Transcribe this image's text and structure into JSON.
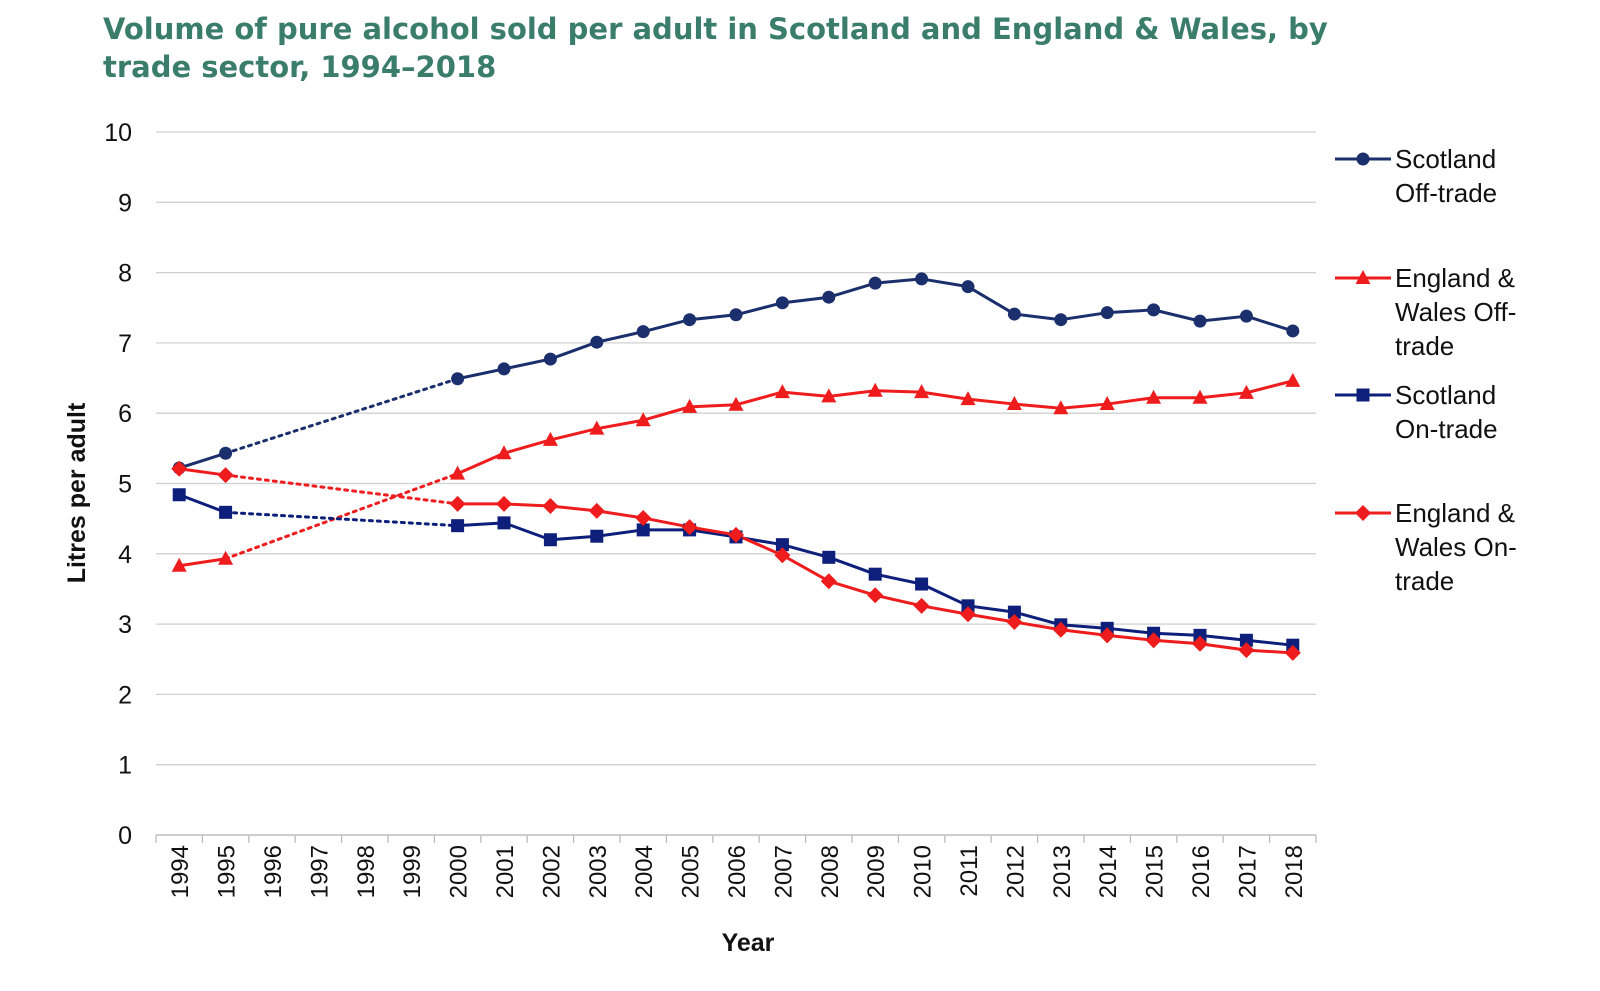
{
  "chart_data": {
    "type": "line",
    "title": "Volume of pure alcohol sold per adult in Scotland and England & Wales, by trade sector, 1994–2018",
    "xlabel": "Year",
    "ylabel": "Litres per adult",
    "ylim": [
      0,
      10
    ],
    "yticks": [
      "0",
      "1",
      "2",
      "3",
      "4",
      "5",
      "6",
      "7",
      "8",
      "9",
      "10"
    ],
    "grid": true,
    "legend_position": "right",
    "categories": [
      "1994",
      "1995",
      "1996",
      "1997",
      "1998",
      "1999",
      "2000",
      "2001",
      "2002",
      "2003",
      "2004",
      "2005",
      "2006",
      "2007",
      "2008",
      "2009",
      "2010",
      "2011",
      "2012",
      "2013",
      "2014",
      "2015",
      "2016",
      "2017",
      "2018"
    ],
    "gap_note_style": "dotted line joins 1995 to 2000 (no data 1996–1999)",
    "series": [
      {
        "name": "Scotland Off-trade",
        "color": "#1a2f6b",
        "marker": "circle",
        "values": [
          5.22,
          5.43,
          null,
          null,
          null,
          null,
          6.49,
          6.63,
          6.77,
          7.01,
          7.16,
          7.33,
          7.4,
          7.57,
          7.65,
          7.85,
          7.91,
          7.8,
          7.41,
          7.33,
          7.43,
          7.47,
          7.31,
          7.38,
          7.17
        ]
      },
      {
        "name": "England & Wales Off-trade",
        "color": "#ee1c1c",
        "marker": "triangle",
        "values": [
          3.83,
          3.93,
          null,
          null,
          null,
          null,
          5.14,
          5.43,
          5.62,
          5.78,
          5.9,
          6.09,
          6.12,
          6.3,
          6.24,
          6.32,
          6.3,
          6.2,
          6.13,
          6.07,
          6.13,
          6.22,
          6.22,
          6.29,
          6.46
        ]
      },
      {
        "name": "Scotland On-trade",
        "color": "#0d1f7a",
        "marker": "square",
        "values": [
          4.84,
          4.59,
          null,
          null,
          null,
          null,
          4.4,
          4.44,
          4.2,
          4.25,
          4.34,
          4.34,
          4.24,
          4.13,
          3.95,
          3.71,
          3.57,
          3.26,
          3.17,
          2.99,
          2.94,
          2.87,
          2.84,
          2.77,
          2.7
        ]
      },
      {
        "name": "England & Wales On-trade",
        "color": "#ee1c1c",
        "marker": "diamond",
        "values": [
          5.21,
          5.12,
          null,
          null,
          null,
          null,
          4.71,
          4.71,
          4.68,
          4.61,
          4.51,
          4.38,
          4.27,
          3.98,
          3.61,
          3.41,
          3.26,
          3.14,
          3.03,
          2.92,
          2.84,
          2.77,
          2.72,
          2.63,
          2.59
        ]
      }
    ]
  }
}
